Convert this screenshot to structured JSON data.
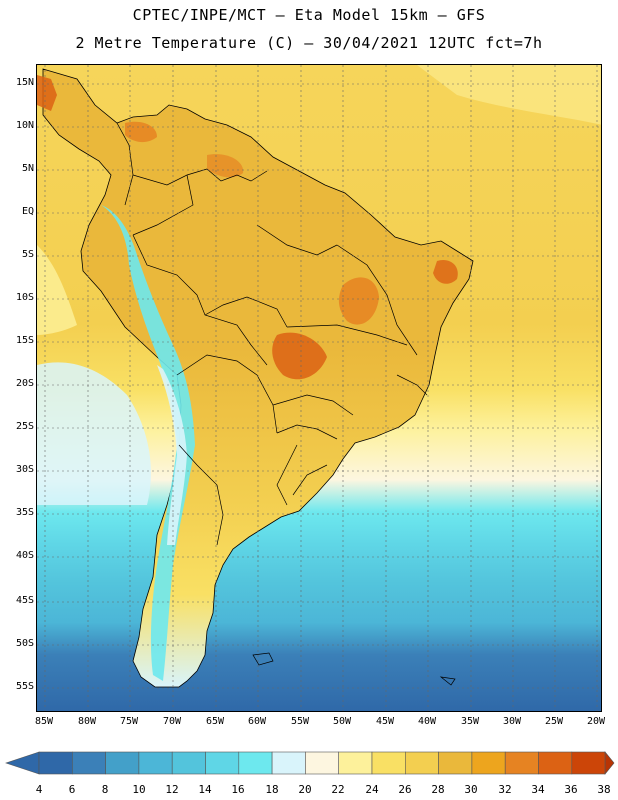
{
  "title": {
    "line1": "CPTEC/INPE/MCT –  Eta Model 15km – GFS",
    "line2": "2 Metre Temperature (C) – 30/04/2021 12UTC fct=7h"
  },
  "map": {
    "region": "South America",
    "lat_labels": [
      "15N",
      "10N",
      "5N",
      "EQ",
      "5S",
      "10S",
      "15S",
      "20S",
      "25S",
      "30S",
      "35S",
      "40S",
      "45S",
      "50S",
      "55S"
    ],
    "lon_labels": [
      "85W",
      "80W",
      "75W",
      "70W",
      "65W",
      "60W",
      "55W",
      "50W",
      "45W",
      "40W",
      "35W",
      "30W",
      "25W",
      "20W"
    ]
  },
  "colorbar": {
    "labels": [
      "4",
      "6",
      "8",
      "10",
      "12",
      "14",
      "16",
      "18",
      "20",
      "22",
      "24",
      "26",
      "28",
      "30",
      "32",
      "34",
      "36",
      "38"
    ],
    "colors": [
      "#2f68a8",
      "#3b80b8",
      "#43a0c9",
      "#4cb6d7",
      "#53c4dc",
      "#5fd6e6",
      "#6de8ee",
      "#d9f4fb",
      "#fdf6e0",
      "#fdf19b",
      "#f9e064",
      "#f3cf50",
      "#eab83b",
      "#eda51e",
      "#e68322",
      "#dc6214",
      "#cc4508",
      "#b83404"
    ]
  },
  "colors": {
    "ocean_cold": "#2f68a8",
    "ocean_mid": "#53c4dc",
    "ocean_warm": "#f3cf50",
    "land_warm": "#eab83b",
    "land_hot": "#dc6214",
    "andes_cold": "#6de8ee"
  }
}
